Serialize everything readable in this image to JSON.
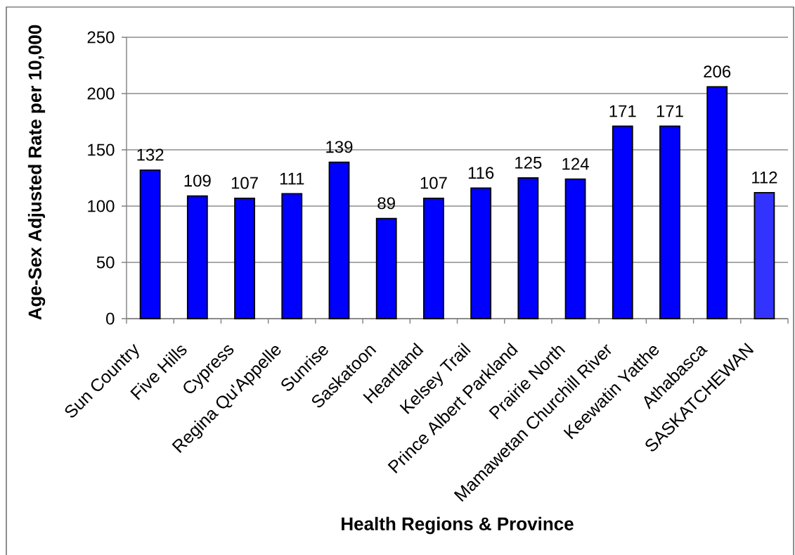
{
  "chart_data": {
    "type": "bar",
    "xlabel": "Health Regions & Province",
    "ylabel": "Age-Sex Adjusted Rate per 10,000",
    "categories": [
      "Sun Country",
      "Five Hills",
      "Cypress",
      "Regina Qu'Appelle",
      "Sunrise",
      "Saskatoon",
      "Heartland",
      "Kelsey Trail",
      "Prince Albert Parkland",
      "Prairie North",
      "Mamawetan Churchill River",
      "Keewatin Yatthe",
      "Athabasca",
      "SASKATCHEWAN"
    ],
    "values": [
      132,
      109,
      107,
      111,
      139,
      89,
      107,
      116,
      125,
      124,
      171,
      171,
      206,
      112
    ],
    "colors": [
      "#0000ff",
      "#0000ff",
      "#0000ff",
      "#0000ff",
      "#0000ff",
      "#0000ff",
      "#0000ff",
      "#0000ff",
      "#0000ff",
      "#0000ff",
      "#0000ff",
      "#0000ff",
      "#0000ff",
      "#3333ff"
    ],
    "ylim": [
      0,
      250
    ],
    "yticks": [
      0,
      50,
      100,
      150,
      200,
      250
    ],
    "grid": "y",
    "data_labels": true
  }
}
